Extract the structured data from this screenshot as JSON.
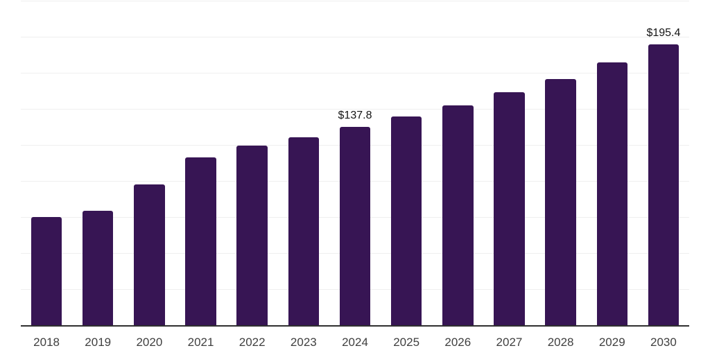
{
  "chart_data": {
    "type": "bar",
    "title": "",
    "xlabel": "",
    "ylabel": "",
    "categories": [
      "2018",
      "2019",
      "2020",
      "2021",
      "2022",
      "2023",
      "2024",
      "2025",
      "2026",
      "2027",
      "2028",
      "2029",
      "2030"
    ],
    "values": [
      75.4,
      79.7,
      98.0,
      116.6,
      125.1,
      130.8,
      137.8,
      145.3,
      152.8,
      161.8,
      171.3,
      182.8,
      195.4
    ],
    "data_labels": {
      "2024": "$137.8",
      "2030": "$195.4"
    },
    "ylim": [
      0,
      225
    ],
    "gridline_step": 25,
    "grid": true,
    "legend_position": "none",
    "bar_color": "#371554",
    "axis_color": "#2F2F2F",
    "gridline_color": "#EFEFEF",
    "tick_label_color": "#3F3F3F",
    "data_label_color": "#141414",
    "background_color": "#FFFFFF"
  }
}
